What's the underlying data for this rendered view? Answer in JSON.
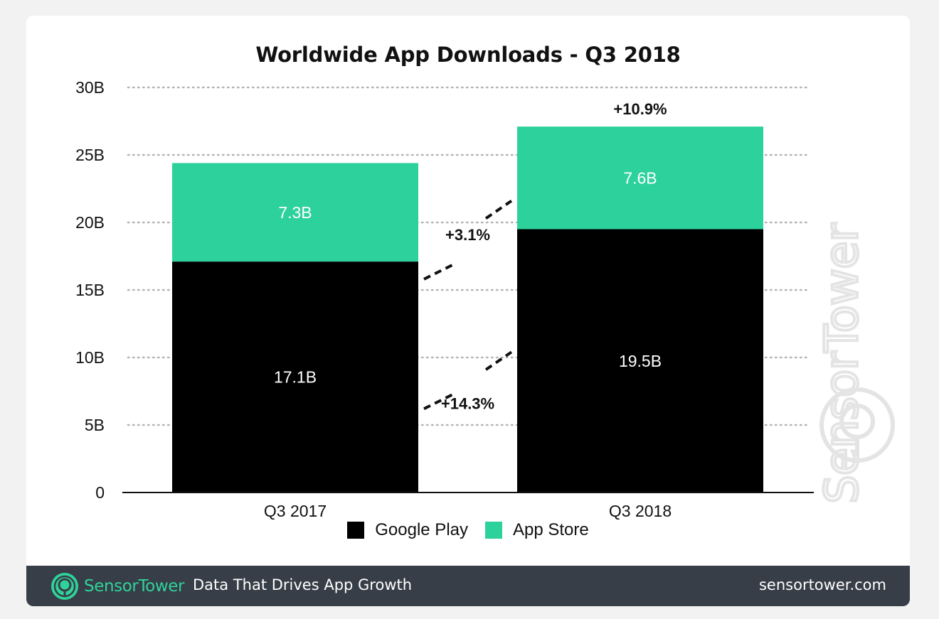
{
  "chart_data": {
    "type": "bar",
    "stacked": true,
    "title": "Worldwide App Downloads - Q3 2018",
    "categories": [
      "Q3 2017",
      "Q3 2018"
    ],
    "series": [
      {
        "name": "Google Play",
        "values": [
          17.1,
          19.5
        ],
        "labels": [
          "17.1B",
          "19.5B"
        ],
        "color": "#000000"
      },
      {
        "name": "App Store",
        "values": [
          7.3,
          7.6
        ],
        "labels": [
          "7.3B",
          "7.6B"
        ],
        "color": "#2dd19b"
      }
    ],
    "ylim": [
      0,
      30
    ],
    "yticks": [
      0,
      5,
      10,
      15,
      20,
      25,
      30
    ],
    "ytick_labels": [
      "0",
      "5B",
      "10B",
      "15B",
      "20B",
      "25B",
      "30B"
    ],
    "grid": true,
    "legend_position": "bottom",
    "annotations": [
      {
        "text": "+3.1%",
        "refers_to": "App Store"
      },
      {
        "text": "+14.3%",
        "refers_to": "Google Play"
      },
      {
        "text": "+10.9%",
        "refers_to": "total"
      }
    ]
  },
  "watermark": "SensorTower",
  "footer": {
    "brand": "SensorTower",
    "tagline": "Data That Drives App Growth",
    "url": "sensortower.com"
  },
  "colors": {
    "google_play": "#000000",
    "app_store": "#2dd19b",
    "footer_bg": "#373e47",
    "brand_accent": "#2fd39a"
  }
}
